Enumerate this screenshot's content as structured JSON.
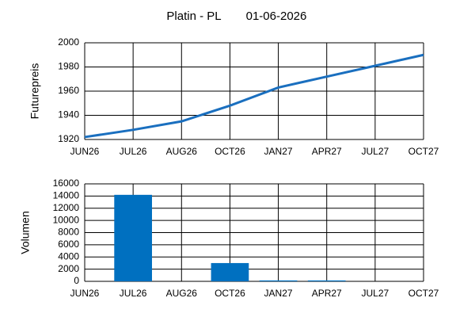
{
  "chart_data": [
    {
      "type": "line",
      "title": "Platin - PL",
      "subtitle": "01-06-2026",
      "y_label": "Futurepreis",
      "categories": [
        "JUN26",
        "JUL26",
        "AUG26",
        "OCT26",
        "JAN27",
        "APR27",
        "JUL27",
        "OCT27"
      ],
      "values": [
        1922,
        1928,
        1935,
        1948,
        1963,
        1972,
        1981,
        1990
      ],
      "color": "#1a6fbf",
      "ylim": [
        1920,
        2000
      ],
      "yticks": [
        1920,
        1940,
        1960,
        1980,
        2000
      ],
      "grid": true
    },
    {
      "type": "bar",
      "y_label": "Volumen",
      "categories": [
        "JUN26",
        "JUL26",
        "AUG26",
        "OCT26",
        "JAN27",
        "APR27",
        "JUL27",
        "OCT27"
      ],
      "values": [
        0,
        14200,
        0,
        3000,
        150,
        150,
        0,
        0
      ],
      "color": "#0070c0",
      "ylim": [
        0,
        16000
      ],
      "yticks": [
        0,
        2000,
        4000,
        6000,
        8000,
        10000,
        12000,
        14000,
        16000
      ],
      "grid": true
    }
  ]
}
